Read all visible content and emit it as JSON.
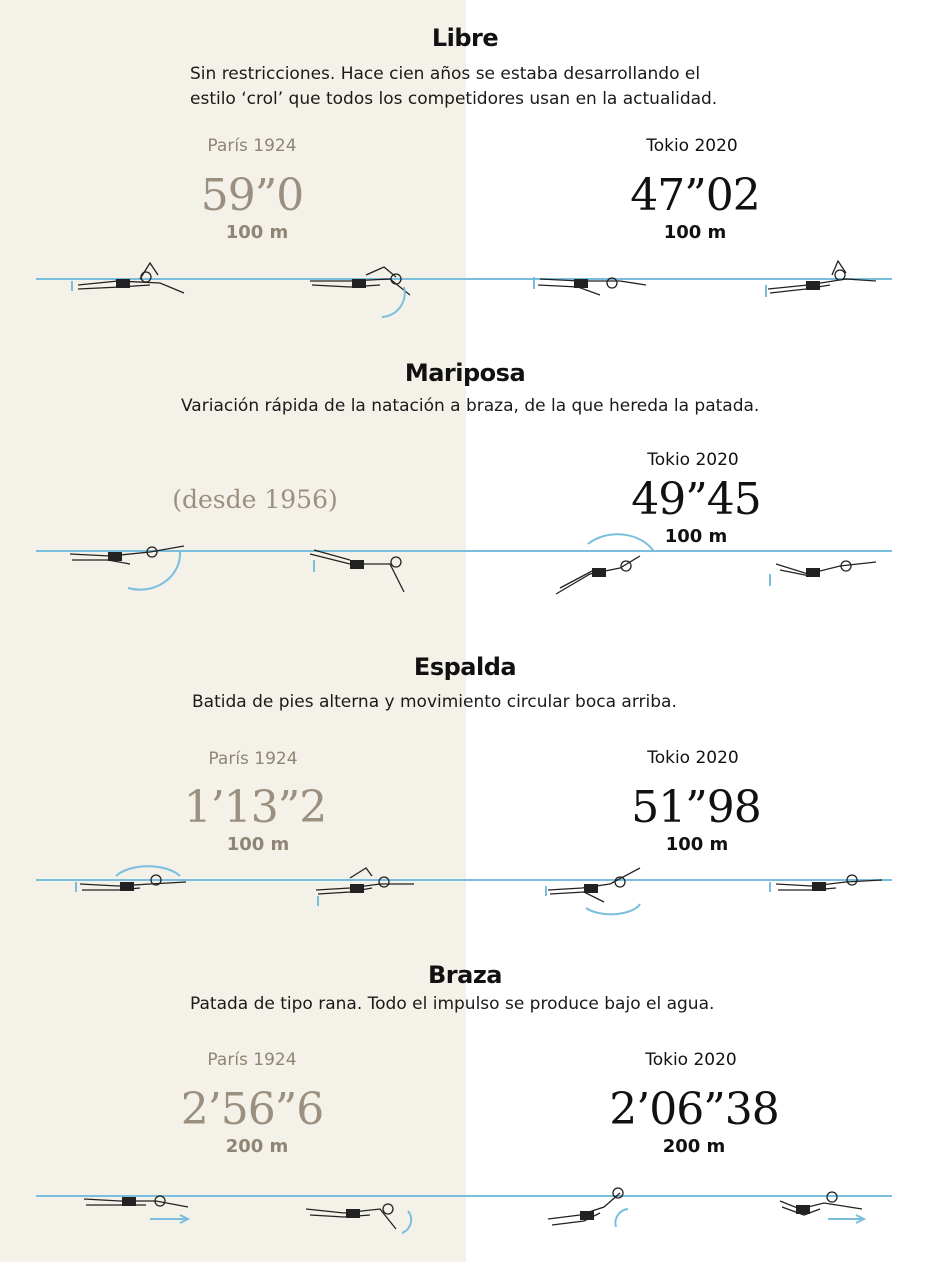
{
  "colors": {
    "water": "#79bfdd",
    "beige": "#f4f1e9",
    "old_text": "#9b907f"
  },
  "sections": [
    {
      "title": "Libre",
      "description_lines": [
        "Sin restricciones. Hace cien años se estaba desarrollando el",
        "estilo ‘crol’ que todos los competidores usan en la actualidad."
      ],
      "paris": {
        "label": "París 1924",
        "time": "59”0",
        "distance": "100 m"
      },
      "tokio": {
        "label": "Tokio 2020",
        "time": "47”02",
        "distance": "100 m"
      }
    },
    {
      "title": "Mariposa",
      "description_lines": [
        "Variación rápida de la natación a braza, de la que hereda la patada."
      ],
      "paris": {
        "since": "(desde 1956)"
      },
      "tokio": {
        "label": "Tokio 2020",
        "time": "49”45",
        "distance": "100 m"
      }
    },
    {
      "title": "Espalda",
      "description_lines": [
        "Batida de pies alterna y movimiento circular boca arriba."
      ],
      "paris": {
        "label": "París 1924",
        "time": "1’13”2",
        "distance": "100 m"
      },
      "tokio": {
        "label": "Tokio 2020",
        "time": "51”98",
        "distance": "100 m"
      }
    },
    {
      "title": "Braza",
      "description_lines": [
        "Patada de tipo rana. Todo el impulso se produce bajo el agua."
      ],
      "paris": {
        "label": "París 1924",
        "time": "2’56”6",
        "distance": "200 m"
      },
      "tokio": {
        "label": "Tokio 2020",
        "time": "2’06”38",
        "distance": "200 m"
      }
    }
  ]
}
